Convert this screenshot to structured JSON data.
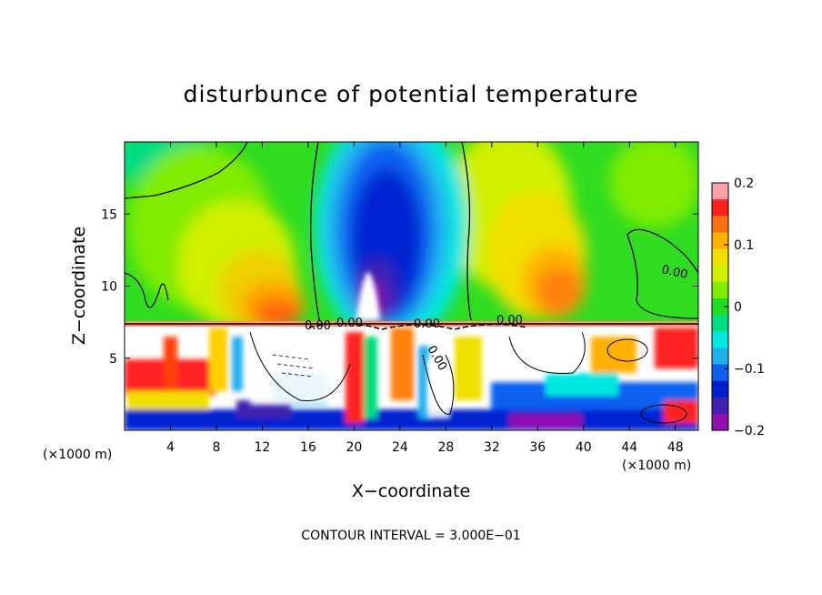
{
  "chart_data": {
    "type": "heatmap",
    "title": "disturbunce of potential temperature",
    "xlabel": "X−coordinate",
    "ylabel": "Z−coordinate",
    "x_unit_left": "(×1000 m)",
    "x_unit_right": "(×1000 m)",
    "footer": "CONTOUR INTERVAL = 3.000E−01",
    "xlim": [
      0,
      50
    ],
    "ylim": [
      0,
      20
    ],
    "x_ticks": [
      4,
      8,
      12,
      16,
      20,
      24,
      28,
      32,
      36,
      40,
      44,
      48
    ],
    "x_tick_labels": [
      "4",
      "8",
      "12",
      "16",
      "20",
      "24",
      "28",
      "32",
      "36",
      "40",
      "44",
      "48"
    ],
    "y_ticks": [
      5,
      10,
      15
    ],
    "y_tick_labels": [
      "5",
      "10",
      "15"
    ],
    "colorbar": {
      "range": [
        -0.2,
        0.2
      ],
      "ticks": [
        0.2,
        0.1,
        0,
        -0.1,
        -0.2
      ],
      "tick_labels": [
        "0.2",
        "0.1",
        "0",
        "−0.1",
        "−0.2"
      ],
      "colors": [
        "#ff9fa8",
        "#ff2020",
        "#ff7010",
        "#ffb000",
        "#f0e000",
        "#d0f000",
        "#80ec00",
        "#20dc20",
        "#00dc80",
        "#00e8e0",
        "#20b0f0",
        "#1060f0",
        "#0020d0",
        "#4020b0",
        "#9010b0"
      ]
    },
    "contour_labels": [
      "0.00",
      "0.00",
      "0.00",
      "0.00",
      "0.00",
      "0.00"
    ],
    "grid": false,
    "legend": "colorbar-right",
    "features": [
      {
        "name": "warm upper plume west",
        "x": 12,
        "z": 9,
        "value": 0.12
      },
      {
        "name": "cold core",
        "x": 23,
        "z": 13,
        "value": -0.19
      },
      {
        "name": "warm upper plume east",
        "x": 38,
        "z": 10,
        "value": 0.12
      },
      {
        "name": "interface layer",
        "z": 7.3
      },
      {
        "name": "lower turbulent layer",
        "z_range": [
          0,
          7.3
        ]
      }
    ]
  }
}
